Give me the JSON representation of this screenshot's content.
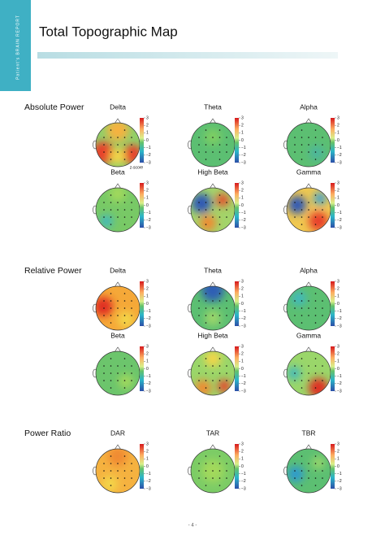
{
  "header": {
    "side_label": "Patient's BRAIN REPORT",
    "title": "Total Topographic Map"
  },
  "colorbar": {
    "ticks": [
      "3",
      "2",
      "1",
      "0",
      "−1",
      "−2",
      "−3"
    ],
    "unit_label": "z-score"
  },
  "sections": [
    {
      "title": "Absolute Power",
      "maps": [
        "Delta",
        "Theta",
        "Alpha",
        "Beta",
        "High Beta",
        "Gamma"
      ]
    },
    {
      "title": "Relative Power",
      "maps": [
        "Delta",
        "Theta",
        "Alpha",
        "Beta",
        "High Beta",
        "Gamma"
      ]
    },
    {
      "title": "Power Ratio",
      "maps": [
        "DAR",
        "TAR",
        "TBR"
      ]
    }
  ],
  "footer": {
    "page": "- 4 -"
  }
}
